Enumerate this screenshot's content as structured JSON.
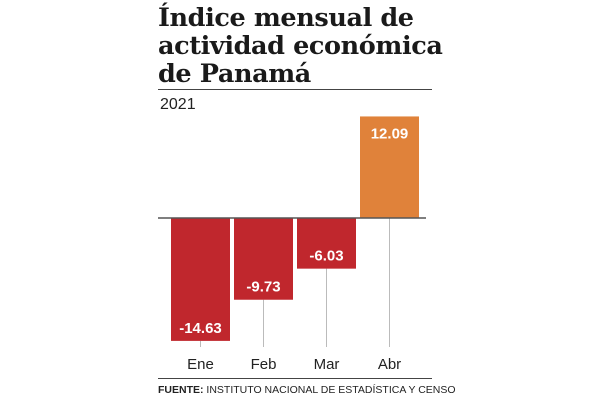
{
  "header": {
    "title_lines": [
      "Índice mensual de",
      "actividad económica",
      "de Panamá"
    ],
    "year": "2021"
  },
  "footer": {
    "source_label": "FUENTE:",
    "source_text": " INSTITUTO NACIONAL DE ESTADÍSTICA Y CENSO"
  },
  "colors": {
    "negative": "#c0272d",
    "positive": "#e0823a",
    "baseline": "#555555",
    "gridline": "#bbbbbb"
  },
  "chart_data": {
    "type": "bar",
    "categories": [
      "Ene",
      "Feb",
      "Mar",
      "Abr"
    ],
    "values": [
      -14.63,
      -9.73,
      -6.03,
      12.09
    ],
    "labels": [
      "-14.63",
      "-9.73",
      "-6.03",
      "12.09"
    ],
    "ylim": [
      -15.5,
      12.5
    ],
    "grid": false
  }
}
